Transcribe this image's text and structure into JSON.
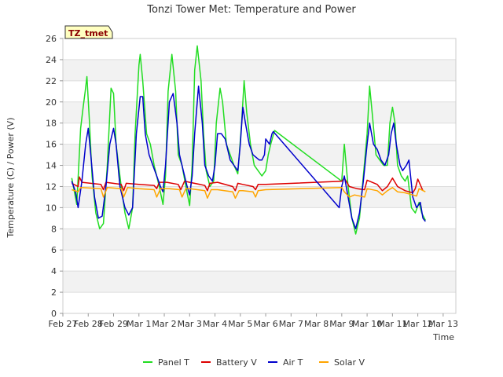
{
  "chart_data": {
    "type": "line",
    "title": "Tonzi Tower Met: Temperature and Power",
    "xlabel": "Time",
    "ylabel": "Temperature (C) / Power (V)",
    "badge": "TZ_tmet",
    "xlim": [
      0,
      15.5
    ],
    "ylim": [
      0,
      26
    ],
    "grid": true,
    "yticks": [
      0,
      2,
      4,
      6,
      8,
      10,
      12,
      14,
      16,
      18,
      20,
      22,
      24,
      26
    ],
    "xticks": [
      {
        "v": 0,
        "label": "Feb 27"
      },
      {
        "v": 1,
        "label": "Feb 28"
      },
      {
        "v": 2,
        "label": "Feb 29"
      },
      {
        "v": 3,
        "label": "Mar 1"
      },
      {
        "v": 4,
        "label": "Mar 2"
      },
      {
        "v": 5,
        "label": "Mar 3"
      },
      {
        "v": 6,
        "label": "Mar 4"
      },
      {
        "v": 7,
        "label": "Mar 5"
      },
      {
        "v": 8,
        "label": "Mar 6"
      },
      {
        "v": 9,
        "label": "Mar 7"
      },
      {
        "v": 10,
        "label": "Mar 8"
      },
      {
        "v": 11,
        "label": "Mar 9"
      },
      {
        "v": 12,
        "label": "Mar 10"
      },
      {
        "v": 13,
        "label": "Mar 11"
      },
      {
        "v": 14,
        "label": "Mar 12"
      },
      {
        "v": 15,
        "label": "Mar 13"
      }
    ],
    "series": [
      {
        "name": "Panel T",
        "color": "#22dd22",
        "points": [
          [
            0.35,
            12.8
          ],
          [
            0.55,
            10.3
          ],
          [
            0.7,
            17.5
          ],
          [
            0.8,
            19.5
          ],
          [
            0.88,
            21
          ],
          [
            0.95,
            22.4
          ],
          [
            1.05,
            18
          ],
          [
            1.15,
            13
          ],
          [
            1.3,
            9.5
          ],
          [
            1.45,
            8
          ],
          [
            1.6,
            8.5
          ],
          [
            1.75,
            14
          ],
          [
            1.9,
            21.3
          ],
          [
            2.0,
            20.8
          ],
          [
            2.1,
            16
          ],
          [
            2.3,
            12
          ],
          [
            2.45,
            9.5
          ],
          [
            2.6,
            8
          ],
          [
            2.75,
            10
          ],
          [
            2.85,
            17
          ],
          [
            3.0,
            23.5
          ],
          [
            3.05,
            24.5
          ],
          [
            3.15,
            22
          ],
          [
            3.3,
            17
          ],
          [
            3.45,
            16
          ],
          [
            3.6,
            14
          ],
          [
            3.8,
            12
          ],
          [
            3.95,
            10.3
          ],
          [
            4.05,
            13
          ],
          [
            4.15,
            21
          ],
          [
            4.3,
            24.5
          ],
          [
            4.45,
            21
          ],
          [
            4.55,
            15
          ],
          [
            4.7,
            14
          ],
          [
            4.85,
            12
          ],
          [
            5.0,
            10.2
          ],
          [
            5.1,
            14
          ],
          [
            5.2,
            23
          ],
          [
            5.3,
            25.3
          ],
          [
            5.45,
            22
          ],
          [
            5.55,
            17
          ],
          [
            5.65,
            13.5
          ],
          [
            5.8,
            12
          ],
          [
            5.95,
            12.5
          ],
          [
            6.05,
            18
          ],
          [
            6.2,
            21.3
          ],
          [
            6.3,
            20
          ],
          [
            6.45,
            16
          ],
          [
            6.6,
            15
          ],
          [
            6.75,
            14
          ],
          [
            6.9,
            13.2
          ],
          [
            7.05,
            18
          ],
          [
            7.15,
            22
          ],
          [
            7.25,
            19
          ],
          [
            7.4,
            16
          ],
          [
            7.55,
            14
          ],
          [
            7.7,
            13.5
          ],
          [
            7.85,
            13
          ],
          [
            8.0,
            13.5
          ],
          [
            8.1,
            15
          ],
          [
            8.2,
            16
          ],
          [
            8.35,
            17.3
          ],
          [
            11.0,
            12.5
          ],
          [
            11.1,
            16
          ],
          [
            11.25,
            12
          ],
          [
            11.4,
            9
          ],
          [
            11.55,
            7.5
          ],
          [
            11.7,
            9
          ],
          [
            11.85,
            13
          ],
          [
            12.0,
            17
          ],
          [
            12.1,
            21.5
          ],
          [
            12.2,
            19
          ],
          [
            12.35,
            15
          ],
          [
            12.5,
            14.5
          ],
          [
            12.65,
            14
          ],
          [
            12.8,
            14
          ],
          [
            12.9,
            18
          ],
          [
            13.0,
            19.5
          ],
          [
            13.1,
            18
          ],
          [
            13.2,
            14
          ],
          [
            13.35,
            13
          ],
          [
            13.5,
            12.5
          ],
          [
            13.6,
            13
          ],
          [
            13.75,
            10
          ],
          [
            13.9,
            9.5
          ],
          [
            14.05,
            10.5
          ],
          [
            14.15,
            9.5
          ],
          [
            14.3,
            8.8
          ]
        ]
      },
      {
        "name": "Battery V",
        "color": "#dd0000",
        "points": [
          [
            0.35,
            12.3
          ],
          [
            0.6,
            12.0
          ],
          [
            0.65,
            12.9
          ],
          [
            0.75,
            12.4
          ],
          [
            1.5,
            12.2
          ],
          [
            1.6,
            11.7
          ],
          [
            1.7,
            12.4
          ],
          [
            2.3,
            12.2
          ],
          [
            2.4,
            11.6
          ],
          [
            2.5,
            12.3
          ],
          [
            3.0,
            12.2
          ],
          [
            3.6,
            12.1
          ],
          [
            3.7,
            11.8
          ],
          [
            3.8,
            12.4
          ],
          [
            4.1,
            12.4
          ],
          [
            4.55,
            12.2
          ],
          [
            4.65,
            11.7
          ],
          [
            4.8,
            12.5
          ],
          [
            5.0,
            12.4
          ],
          [
            5.6,
            12.1
          ],
          [
            5.7,
            11.6
          ],
          [
            5.8,
            12.3
          ],
          [
            6.1,
            12.4
          ],
          [
            6.7,
            12.0
          ],
          [
            6.8,
            11.6
          ],
          [
            6.9,
            12.3
          ],
          [
            7.1,
            12.2
          ],
          [
            7.5,
            12.0
          ],
          [
            7.6,
            11.7
          ],
          [
            7.7,
            12.2
          ],
          [
            8.0,
            12.2
          ],
          [
            11.0,
            12.5
          ],
          [
            11.1,
            12.8
          ],
          [
            11.3,
            12.0
          ],
          [
            11.6,
            11.8
          ],
          [
            11.9,
            11.7
          ],
          [
            12.0,
            12.6
          ],
          [
            12.4,
            12.2
          ],
          [
            12.6,
            11.6
          ],
          [
            12.8,
            12.0
          ],
          [
            13.0,
            12.8
          ],
          [
            13.2,
            12.0
          ],
          [
            13.5,
            11.6
          ],
          [
            13.8,
            11.4
          ],
          [
            13.9,
            11.8
          ],
          [
            14.0,
            12.7
          ],
          [
            14.2,
            11.6
          ]
        ]
      },
      {
        "name": "Air T",
        "color": "#0000cc",
        "points": [
          [
            0.35,
            12.5
          ],
          [
            0.5,
            11.5
          ],
          [
            0.6,
            10
          ],
          [
            0.75,
            12.5
          ],
          [
            0.9,
            16
          ],
          [
            1.0,
            17.5
          ],
          [
            1.1,
            15
          ],
          [
            1.25,
            11
          ],
          [
            1.4,
            9
          ],
          [
            1.55,
            9.2
          ],
          [
            1.7,
            12
          ],
          [
            1.85,
            16
          ],
          [
            2.0,
            17.5
          ],
          [
            2.1,
            16
          ],
          [
            2.25,
            12
          ],
          [
            2.45,
            10
          ],
          [
            2.6,
            9.3
          ],
          [
            2.75,
            10
          ],
          [
            2.9,
            17
          ],
          [
            3.05,
            20.5
          ],
          [
            3.15,
            20.5
          ],
          [
            3.25,
            17
          ],
          [
            3.4,
            15
          ],
          [
            3.55,
            14
          ],
          [
            3.7,
            13
          ],
          [
            3.85,
            12
          ],
          [
            3.95,
            11.5
          ],
          [
            4.05,
            14
          ],
          [
            4.2,
            20
          ],
          [
            4.35,
            20.8
          ],
          [
            4.5,
            18
          ],
          [
            4.6,
            15
          ],
          [
            4.75,
            13.5
          ],
          [
            4.9,
            12
          ],
          [
            5.0,
            11.2
          ],
          [
            5.1,
            13
          ],
          [
            5.2,
            17
          ],
          [
            5.35,
            21.5
          ],
          [
            5.5,
            18
          ],
          [
            5.6,
            14
          ],
          [
            5.75,
            13
          ],
          [
            5.9,
            12.5
          ],
          [
            6.0,
            14
          ],
          [
            6.1,
            17
          ],
          [
            6.25,
            17
          ],
          [
            6.4,
            16.5
          ],
          [
            6.5,
            15.5
          ],
          [
            6.6,
            14.5
          ],
          [
            6.75,
            14
          ],
          [
            6.9,
            13.5
          ],
          [
            7.0,
            16
          ],
          [
            7.1,
            19.5
          ],
          [
            7.2,
            18
          ],
          [
            7.35,
            16
          ],
          [
            7.5,
            15
          ],
          [
            7.6,
            14.8
          ],
          [
            7.75,
            14.5
          ],
          [
            7.85,
            14.5
          ],
          [
            7.95,
            15
          ],
          [
            8.0,
            16.5
          ],
          [
            8.15,
            16
          ],
          [
            8.25,
            17
          ],
          [
            8.3,
            17.2
          ],
          [
            10.9,
            10
          ],
          [
            11.0,
            12
          ],
          [
            11.1,
            13
          ],
          [
            11.25,
            11
          ],
          [
            11.4,
            9
          ],
          [
            11.55,
            8
          ],
          [
            11.7,
            9.5
          ],
          [
            11.85,
            12.5
          ],
          [
            12.0,
            16
          ],
          [
            12.1,
            18
          ],
          [
            12.25,
            16
          ],
          [
            12.4,
            15.5
          ],
          [
            12.55,
            14.5
          ],
          [
            12.7,
            14
          ],
          [
            12.85,
            15
          ],
          [
            12.95,
            17
          ],
          [
            13.05,
            18
          ],
          [
            13.15,
            16
          ],
          [
            13.3,
            14
          ],
          [
            13.4,
            13.5
          ],
          [
            13.55,
            14
          ],
          [
            13.65,
            14.5
          ],
          [
            13.8,
            11
          ],
          [
            13.95,
            10
          ],
          [
            14.1,
            10.5
          ],
          [
            14.2,
            9
          ],
          [
            14.3,
            8.7
          ]
        ]
      },
      {
        "name": "Solar V",
        "color": "#ffa500",
        "points": [
          [
            0.35,
            11.7
          ],
          [
            0.6,
            11.5
          ],
          [
            0.7,
            11.9
          ],
          [
            1.5,
            11.8
          ],
          [
            1.6,
            11.0
          ],
          [
            1.75,
            11.9
          ],
          [
            2.3,
            11.8
          ],
          [
            2.4,
            11.0
          ],
          [
            2.55,
            11.9
          ],
          [
            3.0,
            11.8
          ],
          [
            3.6,
            11.7
          ],
          [
            3.7,
            11.0
          ],
          [
            3.85,
            11.8
          ],
          [
            4.2,
            11.8
          ],
          [
            4.6,
            11.7
          ],
          [
            4.7,
            11.0
          ],
          [
            4.85,
            11.8
          ],
          [
            5.0,
            11.8
          ],
          [
            5.6,
            11.6
          ],
          [
            5.7,
            10.9
          ],
          [
            5.85,
            11.7
          ],
          [
            6.1,
            11.7
          ],
          [
            6.7,
            11.5
          ],
          [
            6.8,
            10.9
          ],
          [
            6.95,
            11.6
          ],
          [
            7.1,
            11.6
          ],
          [
            7.5,
            11.5
          ],
          [
            7.6,
            11.0
          ],
          [
            7.7,
            11.6
          ],
          [
            8.0,
            11.7
          ],
          [
            11.0,
            11.9
          ],
          [
            11.1,
            11.5
          ],
          [
            11.3,
            11.0
          ],
          [
            11.5,
            11.2
          ],
          [
            11.9,
            11.0
          ],
          [
            12.0,
            11.8
          ],
          [
            12.4,
            11.6
          ],
          [
            12.6,
            11.2
          ],
          [
            12.8,
            11.6
          ],
          [
            13.0,
            11.9
          ],
          [
            13.2,
            11.5
          ],
          [
            13.5,
            11.4
          ],
          [
            13.8,
            11.2
          ],
          [
            13.95,
            11.1
          ],
          [
            14.05,
            11.8
          ],
          [
            14.3,
            11.5
          ]
        ]
      }
    ]
  }
}
